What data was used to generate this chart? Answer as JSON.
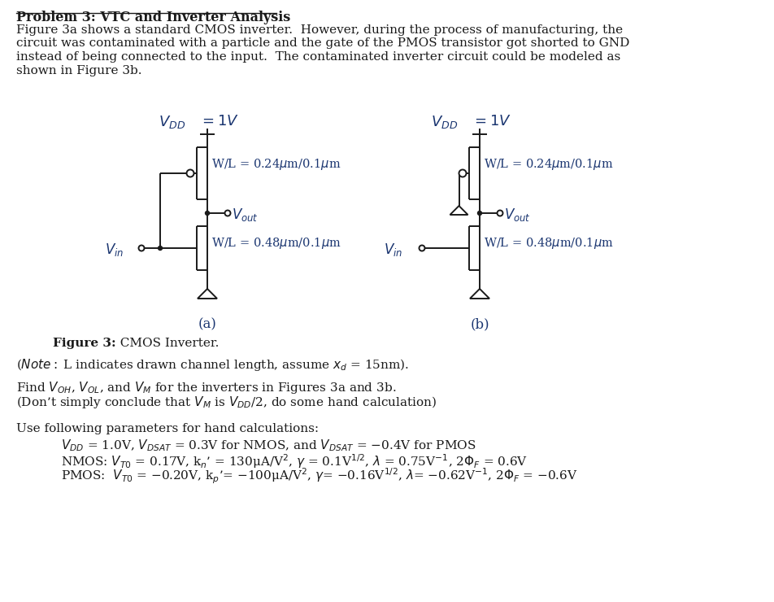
{
  "bg": "#ffffff",
  "tc": "#1a1a1a",
  "bc": "#1a3570",
  "title": "Problem 3: VTC and Inverter Analysis",
  "para": [
    "Figure 3a shows a standard CMOS inverter.  However, during the process of manufacturing, the",
    "circuit was contaminated with a particle and the gate of the PMOS transistor got shorted to GND",
    "instead of being connected to the input.  The contaminated inverter circuit could be modeled as",
    "shown in Figure 3b."
  ],
  "fig_bold": "Figure 3:",
  "fig_rest": "  CMOS Inverter.",
  "note": "($\\it{Note:}$ L indicates drawn channel length, assume $x_d$ = 15nm).",
  "find1": "Find $V_{OH}$, $V_{OL}$, and $V_M$ for the inverters in Figures 3a and 3b.",
  "find2": "(Don’t simply conclude that $V_M$ is $V_{DD}$/2, do some hand calculation)",
  "use": "Use following parameters for hand calculations:",
  "p1": "$V_{DD}$ = 1.0V, $V_{DSAT}$ = 0.3V for NMOS, and $V_{DSAT}$ = −0.4V for PMOS",
  "p2": "NMOS: $V_{T0}$ = 0.17V, k$_n$’ = 130μA/V$^2$, $\\gamma$ = 0.1V$^{1/2}$, $\\lambda$ = 0.75V$^{-1}$, 2$\\Phi_F$ = 0.6V",
  "p3": "PMOS:  $V_{T0}$ = −0.20V, k$_p$’= −100μA/V$^2$, $\\gamma$= −0.16V$^{1/2}$, $\\lambda$= −0.62V$^{-1}$, 2$\\Phi_F$ = −0.6V"
}
